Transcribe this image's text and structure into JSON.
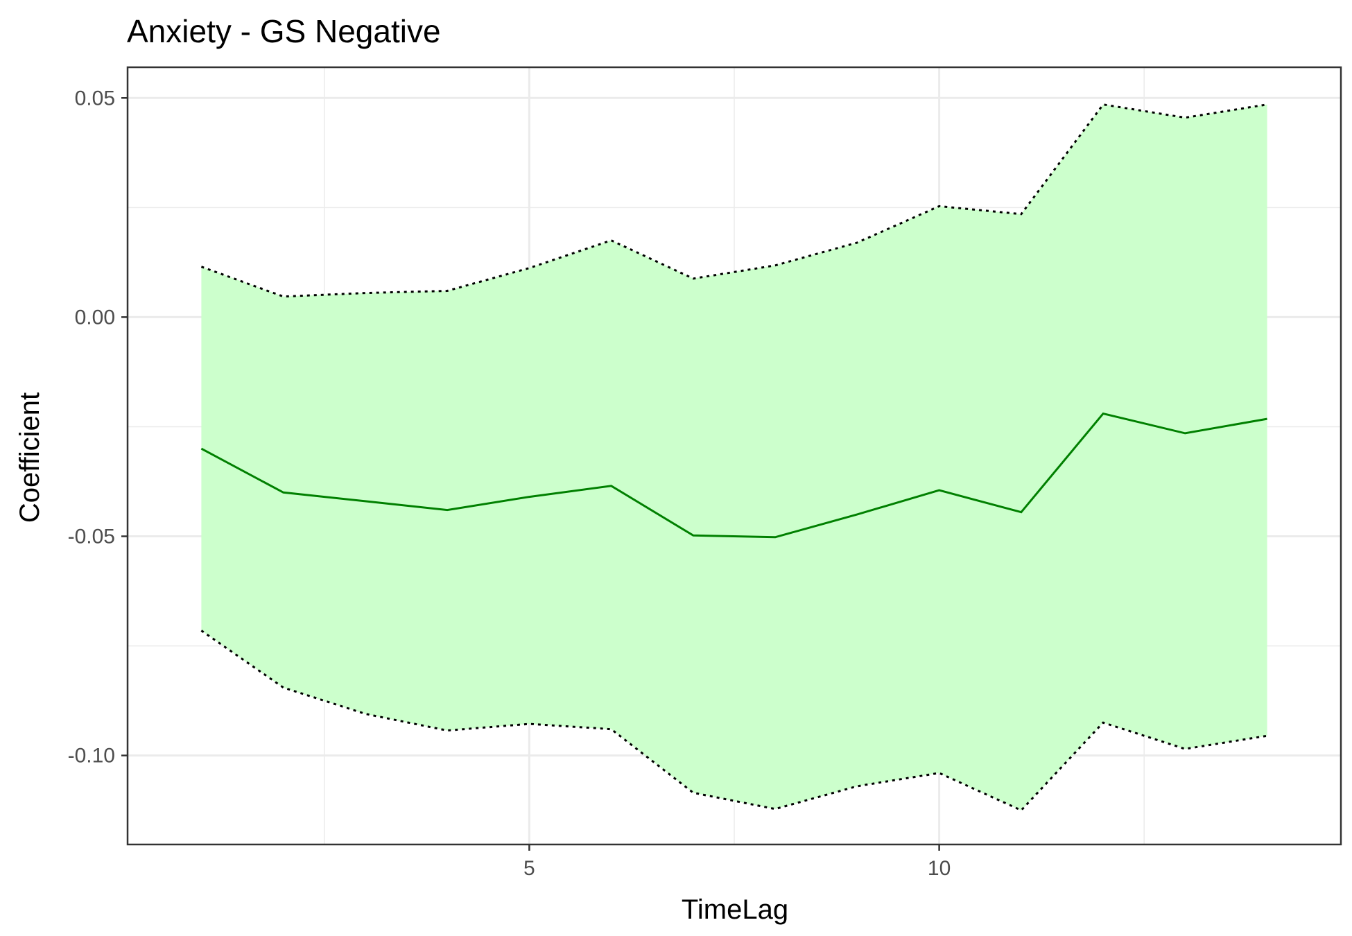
{
  "chart_data": {
    "type": "line",
    "title": "Anxiety - GS Negative",
    "xlabel": "TimeLag",
    "ylabel": "Coefficient",
    "x": [
      1,
      2,
      3,
      4,
      5,
      6,
      7,
      8,
      9,
      10,
      11,
      12,
      13,
      14
    ],
    "series": [
      {
        "role": "estimate",
        "values": [
          -0.03,
          -0.04,
          -0.042,
          -0.044,
          -0.041,
          -0.0385,
          -0.0498,
          -0.0502,
          -0.045,
          -0.0395,
          -0.0445,
          -0.022,
          -0.0265,
          -0.0232
        ]
      },
      {
        "role": "upper-ci",
        "values": [
          0.0115,
          0.0047,
          0.0055,
          0.006,
          0.0112,
          0.0175,
          0.0088,
          0.0118,
          0.017,
          0.0253,
          0.0235,
          0.0485,
          0.0455,
          0.0485
        ]
      },
      {
        "role": "lower-ci",
        "values": [
          -0.0715,
          -0.0845,
          -0.0905,
          -0.0943,
          -0.0928,
          -0.094,
          -0.1085,
          -0.1122,
          -0.107,
          -0.104,
          -0.1125,
          -0.0925,
          -0.0985,
          -0.0955
        ]
      }
    ],
    "xlim": [
      0.1,
      14.9
    ],
    "ylim": [
      -0.1203,
      0.057
    ],
    "x_ticks": [
      5,
      10
    ],
    "x_tick_labels": [
      "5",
      "10"
    ],
    "y_ticks": [
      0.05,
      0.0,
      -0.05,
      -0.1
    ],
    "y_tick_labels": [
      "0.05",
      "0.00",
      "-0.05",
      "-0.10"
    ],
    "x_minor_ticks": [
      2.5,
      7.5,
      12.5
    ],
    "y_minor_ticks": [
      0.025,
      -0.025,
      -0.075
    ],
    "grid": true,
    "colors": {
      "line": "#008000",
      "ribbon": "#ccffcc",
      "ci_line": "#000000",
      "grid": "#ebebeb",
      "panel_border": "#333333",
      "tick_text": "#4d4d4d"
    }
  }
}
